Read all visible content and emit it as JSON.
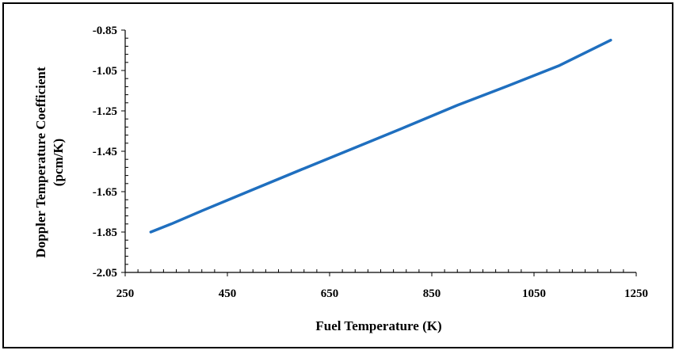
{
  "chart_data": {
    "type": "line",
    "xlabel": "Fuel Temperature  (K)",
    "ylabel_lines": [
      "Doppler Temperature  Coefficient",
      "(pcm/K)"
    ],
    "xlim": [
      250,
      1250
    ],
    "ylim": [
      -2.05,
      -0.85
    ],
    "x_ticks": [
      250,
      450,
      650,
      850,
      1050,
      1250
    ],
    "y_ticks": [
      -2.05,
      -1.85,
      -1.65,
      -1.45,
      -1.25,
      -1.05,
      -0.85
    ],
    "x_tick_labels": [
      "250",
      "450",
      "650",
      "850",
      "1050",
      "1250"
    ],
    "y_tick_labels": [
      "-2.05",
      "-1.85",
      "-1.65",
      "-1.45",
      "-1.25",
      "-1.05",
      "-0.85"
    ],
    "grid": false,
    "series": [
      {
        "color": "#1f6fbf",
        "x": [
          300,
          340,
          400,
          500,
          600,
          700,
          800,
          900,
          1000,
          1100,
          1200
        ],
        "y": [
          -1.85,
          -1.81,
          -1.745,
          -1.64,
          -1.535,
          -1.432,
          -1.328,
          -1.222,
          -1.125,
          -1.025,
          -0.9
        ]
      }
    ]
  }
}
